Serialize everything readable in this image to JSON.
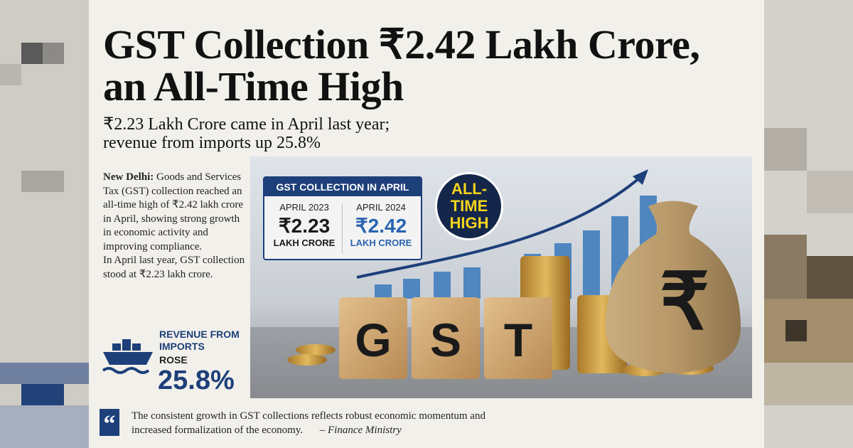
{
  "headline": {
    "lines": [
      "GST Collection ₹2.42 Lakh Crore,",
      "an All-Time High"
    ]
  },
  "subheadline": {
    "lines": [
      "₹2.23 Lakh Crore came in April last year;",
      "revenue from imports up 25.8%"
    ]
  },
  "article": {
    "dateline": "New Delhi:",
    "paragraphs": [
      "Goods and Services Tax (GST) collection reached an all-time high of ₹2.42 lakh crore in April, showing strong growth in economic activity and improving compliance.",
      "In April last year, GST collection stood at ₹2.23 lakh crore."
    ]
  },
  "imports_box": {
    "label": "REVENUE FROM IMPORTS",
    "verb": "ROSE",
    "value": "25.8%"
  },
  "infographic": {
    "title": "GST COLLECTION IN APRIL",
    "columns": [
      {
        "period": "APRIL 2023",
        "amount": "₹2.23",
        "unit": "LAKH CRORE"
      },
      {
        "period": "APRIL 2024",
        "amount": "₹2.42",
        "unit": "LAKH CRORE"
      }
    ],
    "badge": "ALL-TIME HIGH",
    "blocks": [
      "G",
      "S",
      "T"
    ],
    "bag_symbol": "₹"
  },
  "quote": {
    "text": "The consistent growth in GST collections reflects robust economic momentum and increased formalization of the economy.",
    "attribution": "– Finance Ministry"
  }
}
